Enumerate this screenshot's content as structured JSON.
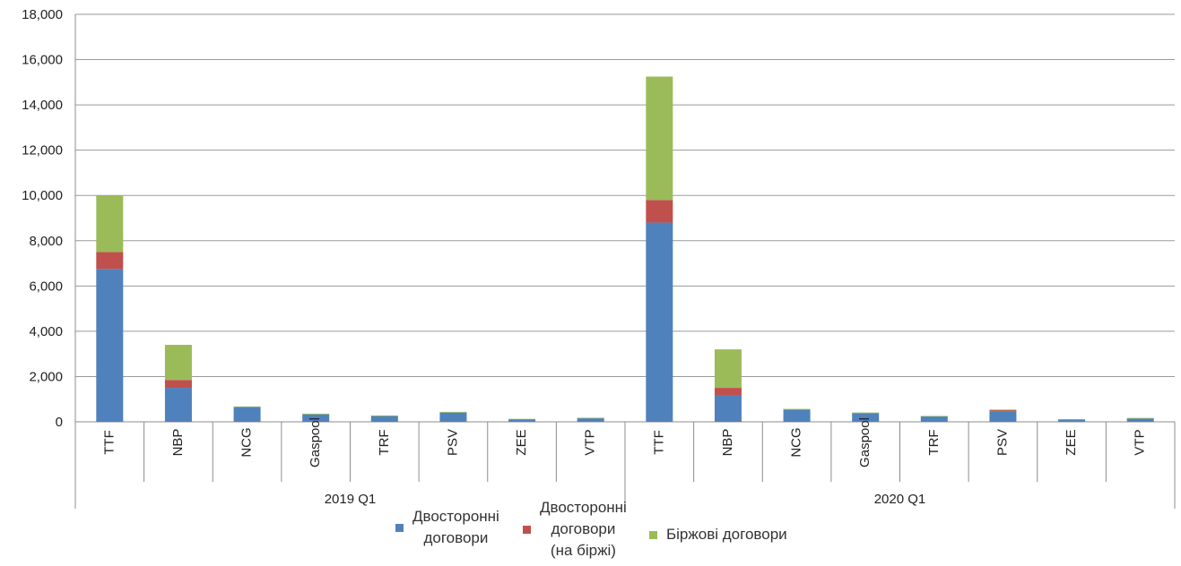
{
  "chart_data": {
    "type": "bar",
    "stacked": true,
    "title": "",
    "xlabel": "",
    "ylabel": "",
    "ylim": [
      0,
      18000
    ],
    "y_ticks": [
      "0",
      "2,000",
      "4,000",
      "6,000",
      "8,000",
      "10,000",
      "12,000",
      "14,000",
      "16,000",
      "18,000"
    ],
    "grid": "horizontal",
    "legend_position": "bottom",
    "groups": [
      {
        "label": "2019 Q1",
        "categories": [
          "TTF",
          "NBP",
          "NCG",
          "Gaspool",
          "TRF",
          "PSV",
          "ZEE",
          "VTP"
        ]
      },
      {
        "label": "2020 Q1",
        "categories": [
          "TTF",
          "NBP",
          "NCG",
          "Gaspool",
          "TRF",
          "PSV",
          "ZEE",
          "VTP"
        ]
      }
    ],
    "series": [
      {
        "name": "Двосторонні договори",
        "color": "#4f81bd",
        "values": [
          6750,
          1500,
          650,
          330,
          260,
          410,
          120,
          170,
          8800,
          1150,
          540,
          380,
          240,
          470,
          110,
          160
        ]
      },
      {
        "name": "Двосторонні договори (на біржі)",
        "color": "#c0504d",
        "values": [
          750,
          350,
          0,
          0,
          0,
          0,
          0,
          0,
          1000,
          350,
          0,
          0,
          0,
          50,
          0,
          0
        ]
      },
      {
        "name": "Біржові договори",
        "color": "#9bbb59",
        "values": [
          2500,
          1550,
          30,
          30,
          20,
          30,
          10,
          10,
          5450,
          1700,
          30,
          30,
          20,
          20,
          10,
          10
        ]
      }
    ]
  },
  "legend": [
    {
      "label": "Двосторонні\nдоговори",
      "color": "#4f81bd"
    },
    {
      "label": "Двосторонні\nдоговори\n(на біржі)",
      "color": "#c0504d"
    },
    {
      "label": "Біржові договори",
      "color": "#9bbb59"
    }
  ]
}
